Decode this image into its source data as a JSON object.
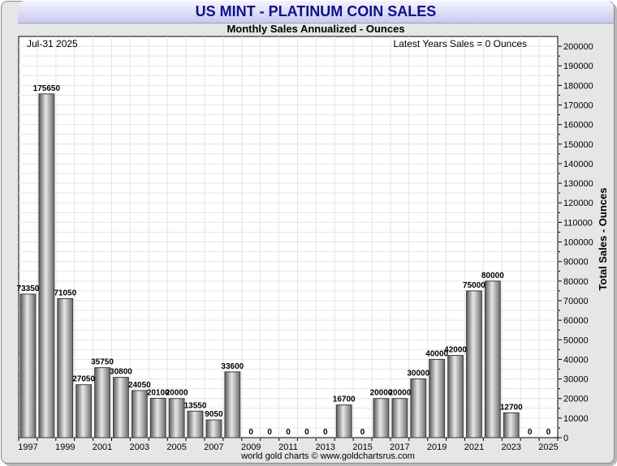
{
  "header": {
    "title": "US MINT - PLATINUM COIN SALES",
    "subtitle": "Monthly Sales Annualized - Ounces"
  },
  "annotations": {
    "date": "Jul-31  2025",
    "latest": "Latest Years Sales = 0 Ounces"
  },
  "footer": {
    "credit": "world gold charts © www.goldchartsrus.com"
  },
  "colors": {
    "bar_dark": "#5a5a5a",
    "bar_light": "#e8e8e8",
    "title": "#10108a",
    "grid": "#dde6ee"
  },
  "chart_data": {
    "type": "bar",
    "title": "US MINT - PLATINUM COIN SALES",
    "subtitle": "Monthly Sales Annualized - Ounces",
    "ylabel": "Total Sales - Ounces",
    "ylim": [
      0,
      205000
    ],
    "y_ticks": [
      0,
      10000,
      20000,
      30000,
      40000,
      50000,
      60000,
      70000,
      80000,
      90000,
      100000,
      110000,
      120000,
      130000,
      140000,
      150000,
      160000,
      170000,
      180000,
      190000,
      200000
    ],
    "x_tick_labels": [
      "1997",
      "1999",
      "2001",
      "2003",
      "2005",
      "2007",
      "2009",
      "2011",
      "2013",
      "2015",
      "2017",
      "2019",
      "2021",
      "2023",
      "2025"
    ],
    "categories": [
      "1997",
      "1998",
      "1999",
      "2000",
      "2001",
      "2002",
      "2003",
      "2004",
      "2005",
      "2006",
      "2007",
      "2008",
      "2009",
      "2010",
      "2011",
      "2012",
      "2013",
      "2014",
      "2015",
      "2016",
      "2017",
      "2018",
      "2019",
      "2020",
      "2021",
      "2022",
      "2023",
      "2024",
      "2025"
    ],
    "values": [
      73350,
      175650,
      71050,
      27050,
      35750,
      30800,
      24050,
      20100,
      20000,
      13550,
      9050,
      33600,
      0,
      0,
      0,
      0,
      0,
      16700,
      0,
      20000,
      20000,
      30000,
      40000,
      42000,
      75000,
      80000,
      12700,
      0,
      0
    ],
    "data_labels": [
      "73350",
      "175650",
      "71050",
      "27050",
      "35750",
      "30800",
      "24050",
      "20100",
      "20000",
      "13550",
      "9050",
      "33600",
      "0",
      "0",
      "0",
      "0",
      "0",
      "16700",
      "0",
      "20000",
      "20000",
      "30000",
      "40000",
      "42000",
      "75000",
      "80000",
      "12700",
      "0",
      "0"
    ],
    "grid": true,
    "legend": "none"
  }
}
